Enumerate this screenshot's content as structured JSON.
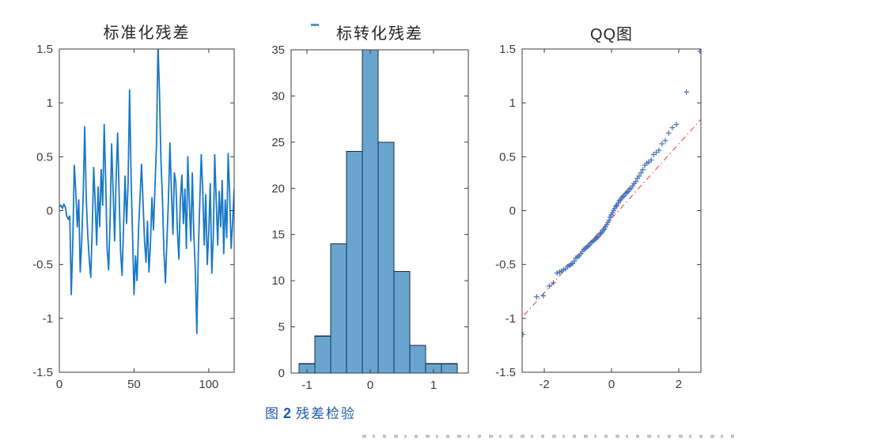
{
  "caption": {
    "prefix": "图",
    "number": "2",
    "text": "残差检验"
  },
  "colors": {
    "line_blue": "#1878c8",
    "hist_fill": "#68a6cf",
    "hist_edge": "#16304d",
    "marker_blue": "#3f6cb8",
    "ref_red": "#f2453a",
    "axis": "#3c3c3c",
    "tick_label": "#3d3d3d",
    "caption_blue": "#1e5aa8",
    "overflow_dash": "#4f97c8"
  },
  "chart_data": [
    {
      "type": "line",
      "title": "标准化残差",
      "xlabel": "",
      "ylabel": "",
      "xlim": [
        0,
        117
      ],
      "ylim": [
        -1.5,
        1.5
      ],
      "x_ticks": [
        0,
        50,
        100
      ],
      "y_ticks": [
        -1.5,
        -1,
        -0.5,
        0,
        0.5,
        1,
        1.5
      ],
      "grid": false,
      "line_color": "#1878c8",
      "x_step": 1,
      "values": [
        0.04,
        0.05,
        0.02,
        0.06,
        0.03,
        -0.05,
        -0.08,
        -0.05,
        -0.78,
        -0.3,
        0.42,
        0.18,
        -0.15,
        0.1,
        -0.57,
        -0.28,
        0.15,
        0.78,
        0.12,
        -0.22,
        -0.45,
        -0.62,
        -0.18,
        0.4,
        0.08,
        -0.32,
        0.22,
        -0.15,
        0.38,
        0.05,
        0.8,
        0.28,
        -0.35,
        -0.55,
        -0.08,
        0.62,
        0.18,
        -0.28,
        0.3,
        0.72,
        0.15,
        -0.38,
        -0.6,
        -0.15,
        0.32,
        -0.12,
        0.25,
        1.12,
        0.32,
        -0.25,
        -0.78,
        -0.42,
        -0.65,
        -0.18,
        0.12,
        0.43,
        0.08,
        -0.28,
        -0.48,
        -0.1,
        -0.57,
        -0.3,
        0.12,
        -0.18,
        0.22,
        0.6,
        1.55,
        1.1,
        0.48,
        0.12,
        -0.38,
        -0.67,
        -0.28,
        0.1,
        0.63,
        0.18,
        -0.22,
        0.35,
        0.26,
        -0.18,
        -0.45,
        0.1,
        0.33,
        -0.12,
        0.2,
        -0.35,
        0.5,
        0.08,
        -0.28,
        0.35,
        -0.22,
        -0.55,
        -1.14,
        -0.4,
        0.1,
        0.52,
        0.18,
        -0.32,
        0.15,
        -0.5,
        -0.2,
        0.25,
        -0.58,
        -0.25,
        0.52,
        0.1,
        -0.32,
        0.18,
        -0.15,
        0.28,
        -0.4,
        0.1,
        -0.25,
        0.53,
        0.15,
        -0.35,
        -0.1,
        0.2
      ]
    },
    {
      "type": "histogram",
      "title": "标转化残差",
      "xlabel": "",
      "ylabel": "",
      "xlim": [
        -1.25,
        1.55
      ],
      "ylim": [
        0,
        35
      ],
      "x_ticks": [
        -1,
        0,
        1
      ],
      "y_ticks": [
        0,
        5,
        10,
        15,
        20,
        25,
        30,
        35
      ],
      "grid": false,
      "bin_start": -1.125,
      "bin_width": 0.25,
      "counts": [
        1,
        4,
        14,
        24,
        37,
        25,
        11,
        3,
        1,
        1
      ],
      "fill": "#68a6cf",
      "edge": "#16304d",
      "note": "center bar (~37) exceeds y-axis range and is clipped at 35; small blue dash visible above title"
    },
    {
      "type": "scatter",
      "title": "QQ图",
      "xlabel": "",
      "ylabel": "",
      "xlim": [
        -2.66,
        2.66
      ],
      "ylim": [
        -1.5,
        1.5
      ],
      "x_ticks": [
        -2,
        0,
        2
      ],
      "y_ticks": [
        -1.5,
        -1,
        -0.5,
        0,
        0.5,
        1,
        1.5
      ],
      "grid": false,
      "marker": "+",
      "marker_color": "#3f6cb8",
      "points": [
        [
          -2.64,
          -1.15
        ],
        [
          -2.23,
          -0.8
        ],
        [
          -2.03,
          -0.79
        ],
        [
          -1.85,
          -0.7
        ],
        [
          -1.73,
          -0.67
        ],
        [
          -1.62,
          -0.58
        ],
        [
          -1.55,
          -0.57
        ],
        [
          -1.49,
          -0.56
        ],
        [
          -1.43,
          -0.55
        ],
        [
          -1.37,
          -0.54
        ],
        [
          -1.31,
          -0.52
        ],
        [
          -1.26,
          -0.51
        ],
        [
          -1.21,
          -0.5
        ],
        [
          -1.16,
          -0.49
        ],
        [
          -1.11,
          -0.47
        ],
        [
          -1.06,
          -0.44
        ],
        [
          -1.01,
          -0.43
        ],
        [
          -0.96,
          -0.42
        ],
        [
          -0.91,
          -0.4
        ],
        [
          -0.87,
          -0.38
        ],
        [
          -0.82,
          -0.36
        ],
        [
          -0.78,
          -0.35
        ],
        [
          -0.74,
          -0.34
        ],
        [
          -0.7,
          -0.33
        ],
        [
          -0.66,
          -0.32
        ],
        [
          -0.62,
          -0.3
        ],
        [
          -0.58,
          -0.29
        ],
        [
          -0.54,
          -0.28
        ],
        [
          -0.5,
          -0.27
        ],
        [
          -0.46,
          -0.26
        ],
        [
          -0.43,
          -0.25
        ],
        [
          -0.39,
          -0.24
        ],
        [
          -0.35,
          -0.22
        ],
        [
          -0.32,
          -0.21
        ],
        [
          -0.28,
          -0.2
        ],
        [
          -0.25,
          -0.18
        ],
        [
          -0.21,
          -0.17
        ],
        [
          -0.18,
          -0.15
        ],
        [
          -0.14,
          -0.13
        ],
        [
          -0.11,
          -0.11
        ],
        [
          -0.07,
          -0.09
        ],
        [
          -0.04,
          -0.06
        ],
        [
          -0.01,
          -0.04
        ],
        [
          0.03,
          -0.02
        ],
        [
          0.06,
          0.0
        ],
        [
          0.09,
          0.02
        ],
        [
          0.13,
          0.04
        ],
        [
          0.16,
          0.05
        ],
        [
          0.2,
          0.07
        ],
        [
          0.23,
          0.09
        ],
        [
          0.27,
          0.1
        ],
        [
          0.3,
          0.12
        ],
        [
          0.34,
          0.13
        ],
        [
          0.38,
          0.14
        ],
        [
          0.42,
          0.16
        ],
        [
          0.46,
          0.17
        ],
        [
          0.5,
          0.18
        ],
        [
          0.54,
          0.2
        ],
        [
          0.58,
          0.21
        ],
        [
          0.63,
          0.23
        ],
        [
          0.67,
          0.25
        ],
        [
          0.72,
          0.27
        ],
        [
          0.77,
          0.3
        ],
        [
          0.82,
          0.32
        ],
        [
          0.88,
          0.35
        ],
        [
          0.93,
          0.38
        ],
        [
          0.99,
          0.42
        ],
        [
          1.05,
          0.44
        ],
        [
          1.11,
          0.45
        ],
        [
          1.18,
          0.47
        ],
        [
          1.25,
          0.52
        ],
        [
          1.33,
          0.54
        ],
        [
          1.41,
          0.56
        ],
        [
          1.5,
          0.62
        ],
        [
          1.6,
          0.65
        ],
        [
          1.7,
          0.72
        ],
        [
          1.81,
          0.77
        ],
        [
          1.93,
          0.8
        ],
        [
          2.23,
          1.1
        ],
        [
          2.63,
          1.48
        ]
      ],
      "ref_line": {
        "from": [
          -2.6,
          -0.97
        ],
        "to": [
          2.67,
          0.85
        ],
        "color": "#f2453a",
        "style": "dash-dot"
      }
    }
  ]
}
